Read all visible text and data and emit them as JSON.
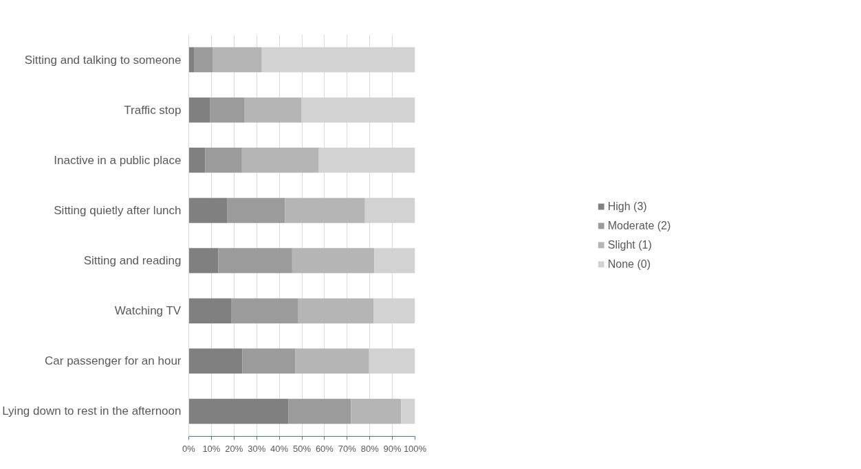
{
  "chart_data": {
    "type": "bar",
    "orientation": "horizontal",
    "stacked": true,
    "categories": [
      "Sitting and talking to someone",
      "Traffic stop",
      "Inactive in a public place",
      "Sitting quietly after lunch",
      "Sitting and reading",
      "Watching TV",
      "Car passenger for an hour",
      "Lying down to rest in the afternoon"
    ],
    "series": [
      {
        "name": "High (3)",
        "color": "#808080",
        "values": [
          2.3,
          9.3,
          7.2,
          16.9,
          13.0,
          18.7,
          23.7,
          44.1
        ]
      },
      {
        "name": "Moderate (2)",
        "color": "#9b9b9b",
        "values": [
          8.4,
          15.4,
          16.3,
          25.6,
          32.7,
          29.7,
          23.3,
          27.6
        ]
      },
      {
        "name": "Slight (1)",
        "color": "#b5b5b5",
        "values": [
          21.6,
          25.2,
          34.0,
          35.4,
          36.3,
          33.4,
          32.7,
          22.2
        ]
      },
      {
        "name": "None (0)",
        "color": "#d2d2d2",
        "values": [
          67.7,
          50.1,
          42.5,
          22.1,
          18.0,
          18.2,
          20.3,
          6.1
        ]
      }
    ],
    "xlim": [
      0,
      100
    ],
    "xticks": [
      {
        "value": 0,
        "label": "0%"
      },
      {
        "value": 10,
        "label": "10%"
      },
      {
        "value": 20,
        "label": "20%"
      },
      {
        "value": 30,
        "label": "30%"
      },
      {
        "value": 40,
        "label": "40%"
      },
      {
        "value": 50,
        "label": "50%"
      },
      {
        "value": 60,
        "label": "60%"
      },
      {
        "value": 70,
        "label": "70%"
      },
      {
        "value": 80,
        "label": "80%"
      },
      {
        "value": 90,
        "label": "90%"
      },
      {
        "value": 100,
        "label": "100%"
      }
    ],
    "grid": "x",
    "legend": "right"
  }
}
